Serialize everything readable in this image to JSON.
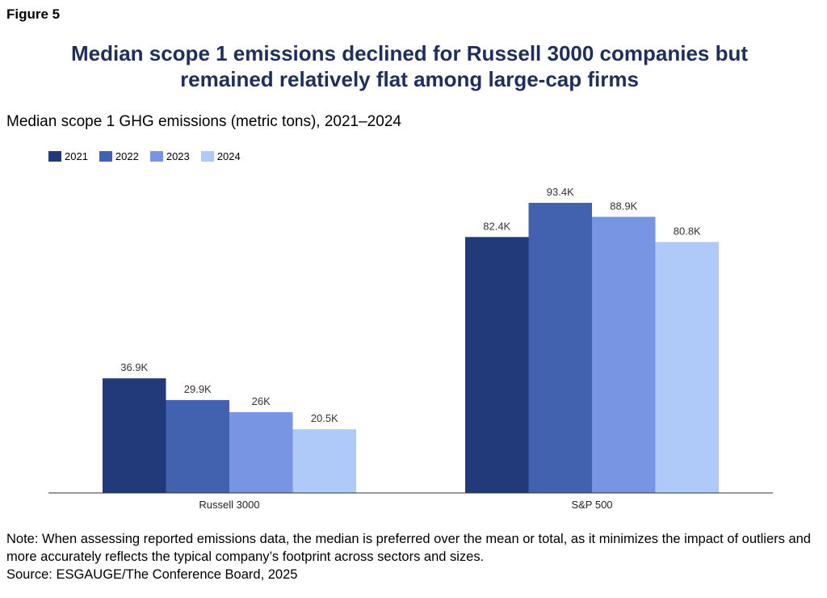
{
  "figure_label": "Figure 5",
  "title_line1": "Median scope 1 emissions declined for Russell 3000 companies but",
  "title_line2": "remained relatively flat among large-cap firms",
  "subtitle": "Median scope 1 GHG emissions (metric tons), 2021–2024",
  "note": "Note: When assessing reported emissions data, the median is preferred over the mean or total, as it minimizes the impact of outliers and more accurately reflects the typical company’s footprint across sectors and sizes.",
  "source": "Source: ESGAUGE/The Conference Board, 2025",
  "chart_data": {
    "type": "bar",
    "categories": [
      "Russell 3000",
      "S&P 500"
    ],
    "series": [
      {
        "name": "2021",
        "color": "#233a7a",
        "values": [
          36.9,
          82.4
        ],
        "labels": [
          "36.9K",
          "82.4K"
        ]
      },
      {
        "name": "2022",
        "color": "#4262b0",
        "values": [
          29.9,
          93.4
        ],
        "labels": [
          "29.9K",
          "93.4K"
        ]
      },
      {
        "name": "2023",
        "color": "#7895e3",
        "values": [
          26,
          88.9
        ],
        "labels": [
          "26K",
          "88.9K"
        ]
      },
      {
        "name": "2024",
        "color": "#afcaf8",
        "values": [
          20.5,
          80.8
        ],
        "labels": [
          "20.5K",
          "80.8K"
        ]
      }
    ],
    "unit": "thousand metric tons",
    "ylim": [
      0,
      100
    ],
    "grid": false,
    "legend": "top-left"
  }
}
